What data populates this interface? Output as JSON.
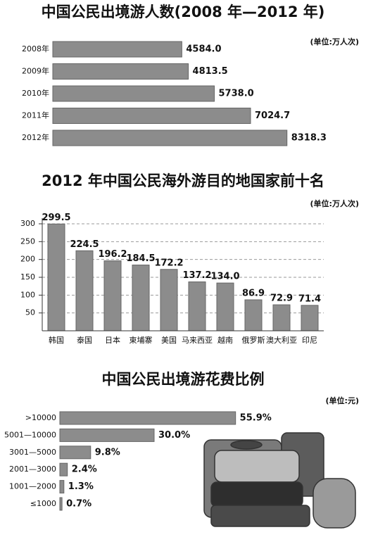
{
  "chart_data": [
    {
      "type": "barh",
      "title": "中国公民出境游人数(2008 年—2012 年)",
      "unit": "(单位:万人次)",
      "categories": [
        "2008年",
        "2009年",
        "2010年",
        "2011年",
        "2012年"
      ],
      "values": [
        4584.0,
        4813.5,
        5738.0,
        7024.7,
        8318.3
      ],
      "value_labels": [
        "4584.0",
        "4813.5",
        "5738.0",
        "7024.7",
        "8318.3"
      ],
      "xlim": [
        0,
        8500
      ],
      "color": "#8c8c8c"
    },
    {
      "type": "bar",
      "title": "2012 年中国公民海外游目的地国家前十名",
      "unit": "(单位:万人次)",
      "categories": [
        "韩国",
        "泰国",
        "日本",
        "柬埔寨",
        "美国",
        "马来西亚",
        "越南",
        "俄罗斯",
        "澳大利亚",
        "印尼"
      ],
      "values": [
        299.5,
        224.5,
        196.2,
        184.5,
        172.2,
        137.2,
        134.0,
        86.9,
        72.9,
        71.4
      ],
      "value_labels": [
        "299.5",
        "224.5",
        "196.2",
        "184.5",
        "172.2",
        "137.2",
        "134.0",
        "86.9",
        "72.9",
        "71.4"
      ],
      "ylim": [
        0,
        300
      ],
      "yticks": [
        50,
        100,
        150,
        200,
        250,
        300
      ],
      "grid": true,
      "color": "#8c8c8c"
    },
    {
      "type": "barh",
      "title": "中国公民出境游花费比例",
      "unit": "(单位:元)",
      "categories": [
        ">10000",
        "5001—10000",
        "3001—5000",
        "2001—3000",
        "1001—2000",
        "≤1000"
      ],
      "values": [
        55.9,
        30.0,
        9.8,
        2.4,
        1.3,
        0.7
      ],
      "value_labels": [
        "55.9%",
        "30.0%",
        "9.8%",
        "2.4%",
        "1.3%",
        "0.7%"
      ],
      "xlim": [
        0,
        60
      ],
      "color": "#8c8c8c"
    }
  ]
}
